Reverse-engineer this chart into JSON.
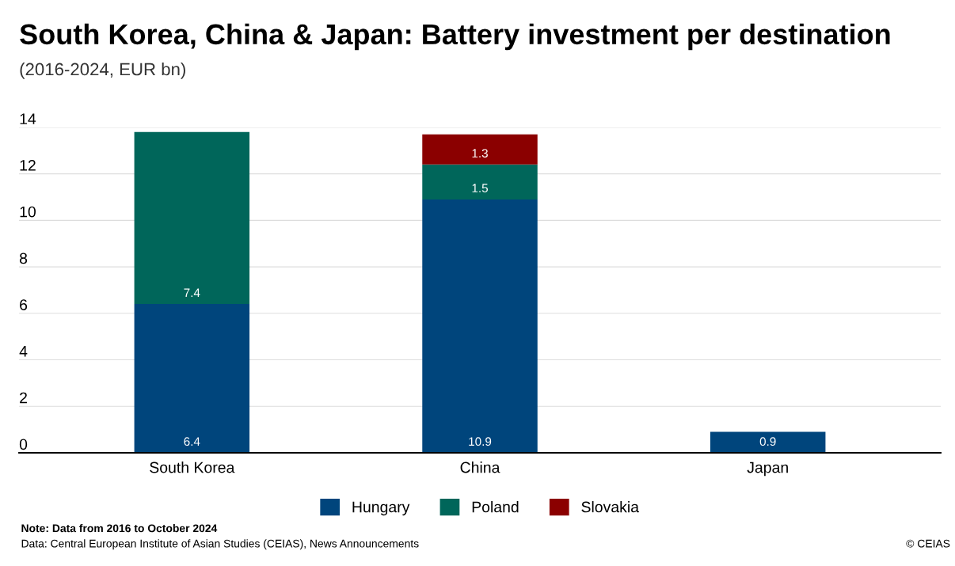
{
  "chart_data": {
    "type": "bar",
    "title": "South Korea, China & Japan: Battery investment per destination",
    "subtitle": "(2016-2024, EUR bn)",
    "categories": [
      "South Korea",
      "China",
      "Japan"
    ],
    "series": [
      {
        "name": "Hungary",
        "color": "#00457c",
        "values": [
          6.4,
          10.9,
          0.9
        ]
      },
      {
        "name": "Poland",
        "color": "#00665a",
        "values": [
          7.4,
          1.5,
          null
        ]
      },
      {
        "name": "Slovakia",
        "color": "#8b0000",
        "values": [
          null,
          1.3,
          null
        ]
      }
    ],
    "stacked": true,
    "data_labels": true,
    "ylim": [
      0,
      14
    ],
    "yticks": [
      0,
      2,
      4,
      6,
      8,
      10,
      12,
      14
    ],
    "grid": "y",
    "legend": "bottom",
    "annotations": [
      "Note: Data from 2016 to October 2024",
      "Data: Central European Institute of Asian Studies (CEIAS), News Announcements",
      "© CEIAS"
    ]
  }
}
